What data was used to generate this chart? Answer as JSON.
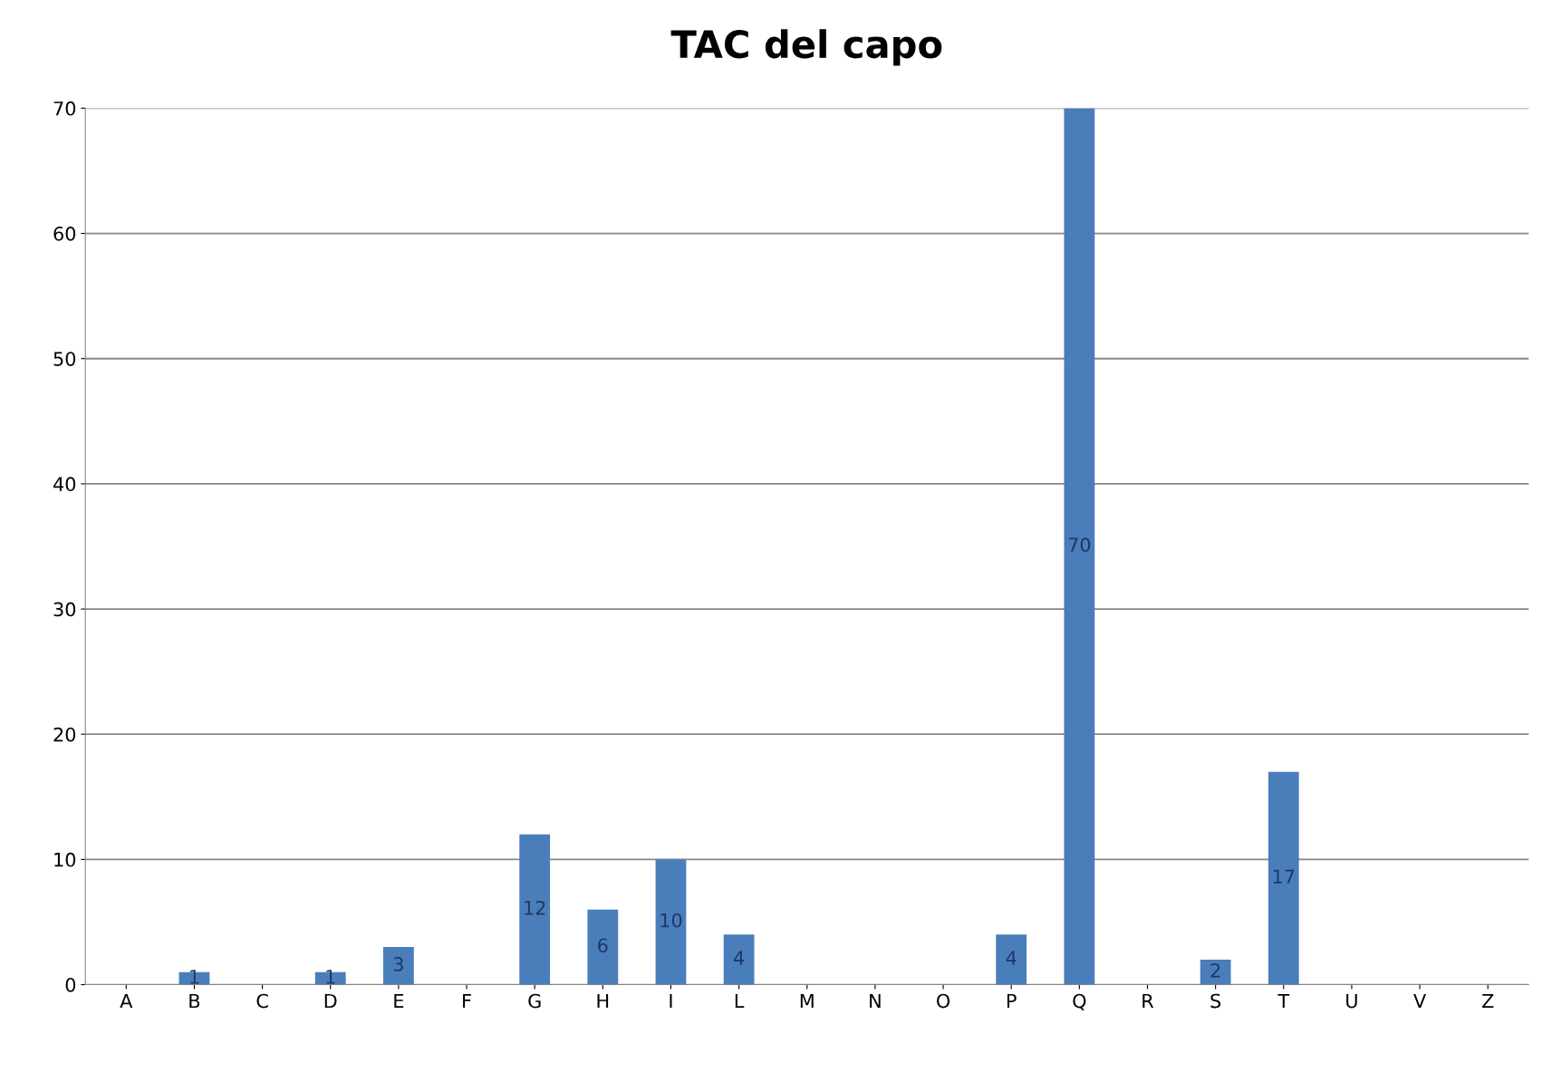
{
  "chart_data": {
    "type": "bar",
    "title": "TAC del capo",
    "categories": [
      "A",
      "B",
      "C",
      "D",
      "E",
      "F",
      "G",
      "H",
      "I",
      "L",
      "M",
      "N",
      "O",
      "P",
      "Q",
      "R",
      "S",
      "T",
      "U",
      "V",
      "Z"
    ],
    "values": [
      0,
      1,
      0,
      1,
      3,
      0,
      12,
      6,
      10,
      4,
      0,
      0,
      0,
      4,
      70,
      0,
      2,
      17,
      0,
      0,
      0
    ],
    "value_labels": [
      null,
      "1",
      null,
      "1",
      "3",
      null,
      "12",
      "6",
      "10",
      "4",
      null,
      null,
      null,
      "4",
      "70",
      null,
      "2",
      "17",
      null,
      null,
      null
    ],
    "color": "#4a7ebb",
    "ylim": [
      0,
      70
    ],
    "yticks": [
      0,
      10,
      20,
      30,
      40,
      50,
      60,
      70
    ],
    "grid": "y",
    "legend": false
  }
}
